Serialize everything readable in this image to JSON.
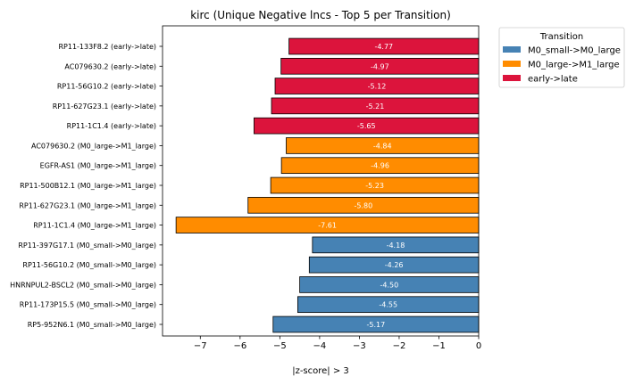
{
  "chart_data": {
    "type": "bar",
    "orientation": "horizontal",
    "title": "kirc (Unique Negative lncs - Top 5 per Transition)",
    "xlabel": "|z-score| > 3",
    "ylabel": "",
    "xlim": [
      -7.95,
      0
    ],
    "xticks": [
      "−7",
      "−6",
      "−5",
      "−4",
      "−3",
      "−2",
      "−1",
      "0"
    ],
    "xtick_values": [
      -7,
      -6,
      -5,
      -4,
      -3,
      -2,
      -1,
      0
    ],
    "grid": false,
    "legend": {
      "title": "Transition",
      "placement": "upper right, outside plot",
      "entries": [
        {
          "label": "M0_small->M0_large",
          "color": "#4682b4"
        },
        {
          "label": "M0_large->M1_large",
          "color": "#ff8c00"
        },
        {
          "label": "early->late",
          "color": "#dc143c"
        }
      ]
    },
    "bars": [
      {
        "label": "RP11-133F8.2 (early->late)",
        "value": -4.77,
        "text": "-4.77",
        "group": 2
      },
      {
        "label": "AC079630.2 (early->late)",
        "value": -4.97,
        "text": "-4.97",
        "group": 2
      },
      {
        "label": "RP11-56G10.2 (early->late)",
        "value": -5.12,
        "text": "-5.12",
        "group": 2
      },
      {
        "label": "RP11-627G23.1 (early->late)",
        "value": -5.21,
        "text": "-5.21",
        "group": 2
      },
      {
        "label": "RP11-1C1.4 (early->late)",
        "value": -5.65,
        "text": "-5.65",
        "group": 2
      },
      {
        "label": "AC079630.2 (M0_large->M1_large)",
        "value": -4.84,
        "text": "-4.84",
        "group": 1
      },
      {
        "label": "EGFR-AS1 (M0_large->M1_large)",
        "value": -4.96,
        "text": "-4.96",
        "group": 1
      },
      {
        "label": "RP11-500B12.1 (M0_large->M1_large)",
        "value": -5.23,
        "text": "-5.23",
        "group": 1
      },
      {
        "label": "RP11-627G23.1 (M0_large->M1_large)",
        "value": -5.8,
        "text": "-5.80",
        "group": 1
      },
      {
        "label": "RP11-1C1.4 (M0_large->M1_large)",
        "value": -7.61,
        "text": "-7.61",
        "group": 1
      },
      {
        "label": "RP11-397G17.1 (M0_small->M0_large)",
        "value": -4.18,
        "text": "-4.18",
        "group": 0
      },
      {
        "label": "RP11-56G10.2 (M0_small->M0_large)",
        "value": -4.26,
        "text": "-4.26",
        "group": 0
      },
      {
        "label": "HNRNPUL2-BSCL2 (M0_small->M0_large)",
        "value": -4.5,
        "text": "-4.50",
        "group": 0
      },
      {
        "label": "RP11-173P15.5 (M0_small->M0_large)",
        "value": -4.55,
        "text": "-4.55",
        "group": 0
      },
      {
        "label": "RP5-952N6.1 (M0_small->M0_large)",
        "value": -5.17,
        "text": "-5.17",
        "group": 0
      }
    ]
  }
}
